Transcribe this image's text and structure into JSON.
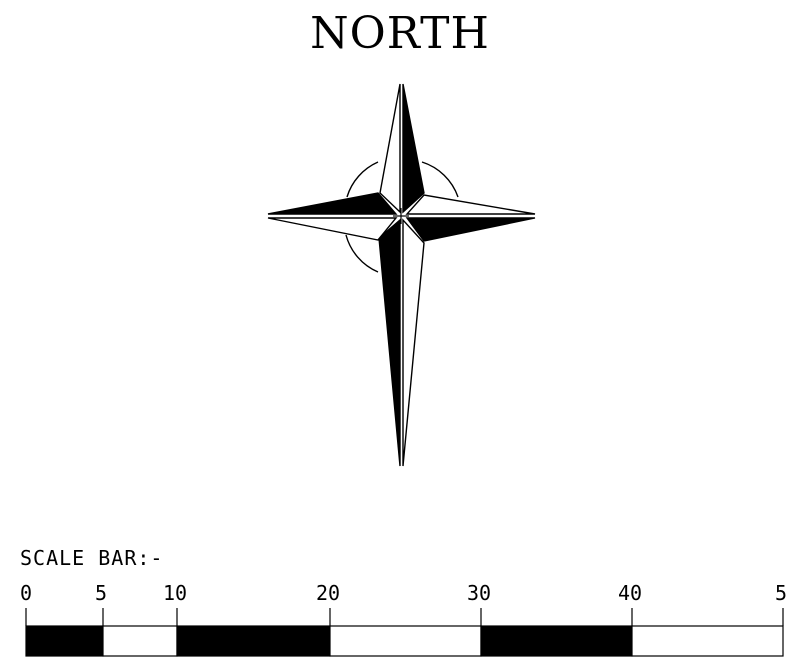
{
  "title": "NORTH",
  "scale_bar": {
    "label": "SCALE BAR:-",
    "ticks": [
      "0",
      "5",
      "10",
      "20",
      "30",
      "40",
      "5"
    ],
    "segment_fills": [
      "black",
      "white",
      "black",
      "white",
      "black",
      "white"
    ]
  },
  "colors": {
    "ink": "#000000",
    "paper": "#ffffff"
  },
  "icons": [
    "compass-rose-icon"
  ]
}
